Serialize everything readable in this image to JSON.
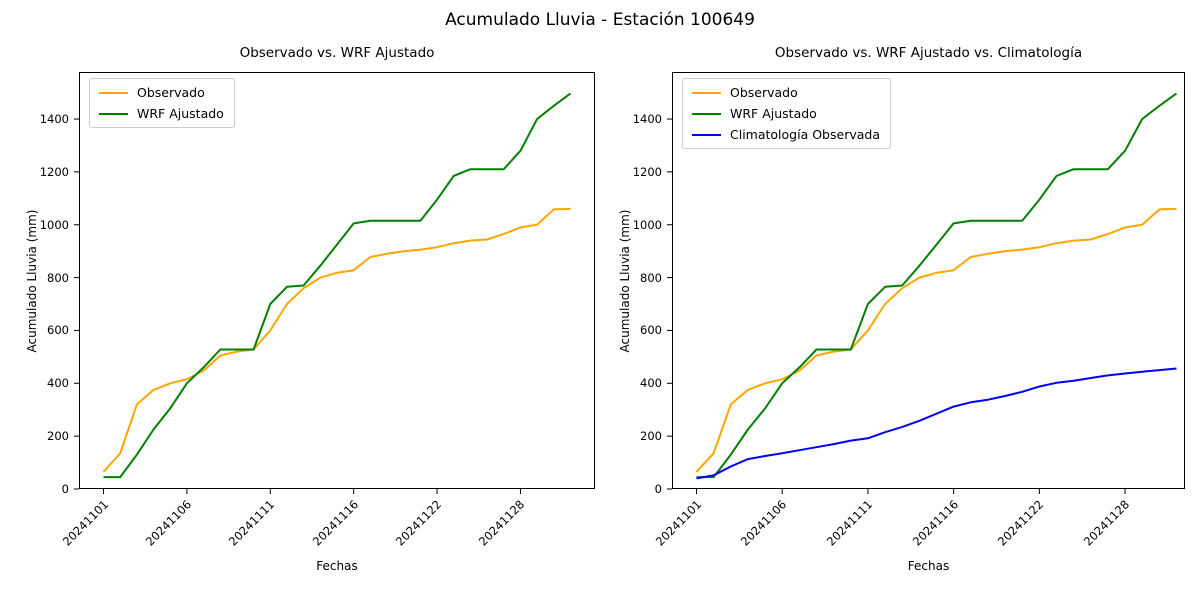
{
  "figure": {
    "title": "Acumulado Lluvia - Estación 100649"
  },
  "charts": [
    {
      "title": "Observado vs. WRF Ajustado",
      "xlabel": "Fechas",
      "ylabel": "Acumulado Lluvia (mm)",
      "series_indices": [
        0,
        1
      ],
      "legend": [
        {
          "label": "Observado",
          "color": "#ffa500"
        },
        {
          "label": "WRF Ajustado",
          "color": "#008000"
        }
      ]
    },
    {
      "title": "Observado vs. WRF Ajustado vs. Climatología",
      "xlabel": "Fechas",
      "ylabel": "Acumulado Lluvia (mm)",
      "series_indices": [
        0,
        1,
        2
      ],
      "legend": [
        {
          "label": "Observado",
          "color": "#ffa500"
        },
        {
          "label": "WRF Ajustado",
          "color": "#008000"
        },
        {
          "label": "Climatología Observada",
          "color": "#0000ff"
        }
      ]
    }
  ],
  "chart_data": {
    "type": "line",
    "title": "Acumulado Lluvia - Estación 100649",
    "xlabel": "Fechas",
    "ylabel": "Acumulado Lluvia (mm)",
    "grid": false,
    "legend_position": "upper left",
    "ylim": [
      0,
      1578
    ],
    "y_tick_values": [
      0,
      200,
      400,
      600,
      800,
      1000,
      1200,
      1400
    ],
    "x_tick_labels": [
      "20241101",
      "20241106",
      "20241111",
      "20241116",
      "20241122",
      "20241128"
    ],
    "x_tick_indices": [
      0,
      5,
      10,
      15,
      20,
      25
    ],
    "x": [
      "20241101",
      "20241102",
      "20241103",
      "20241104",
      "20241105",
      "20241106",
      "20241107",
      "20241108",
      "20241109",
      "20241110",
      "20241111",
      "20241112",
      "20241113",
      "20241114",
      "20241115",
      "20241116",
      "20241118",
      "20241119",
      "20241120",
      "20241121",
      "20241122",
      "20241124",
      "20241125",
      "20241126",
      "20241127",
      "20241128",
      "20241129",
      "20241130",
      "20241201"
    ],
    "series": [
      {
        "name": "Observado",
        "color": "#ffa500",
        "values": [
          65,
          135,
          320,
          375,
          400,
          415,
          448,
          505,
          520,
          528,
          600,
          700,
          760,
          800,
          818,
          828,
          878,
          890,
          900,
          906,
          915,
          930,
          940,
          944,
          965,
          990,
          1000,
          1058,
          1060
        ]
      },
      {
        "name": "WRF Ajustado",
        "color": "#008000",
        "values": [
          45,
          45,
          130,
          225,
          305,
          400,
          460,
          528,
          528,
          528,
          700,
          765,
          770,
          845,
          925,
          1005,
          1015,
          1015,
          1015,
          1015,
          1095,
          1185,
          1210,
          1210,
          1210,
          1280,
          1400,
          1450,
          1497
        ]
      },
      {
        "name": "Climatología Observada",
        "color": "#0000ff",
        "values": [
          40,
          52,
          85,
          113,
          125,
          135,
          147,
          158,
          170,
          183,
          192,
          215,
          235,
          258,
          285,
          312,
          328,
          338,
          352,
          368,
          388,
          402,
          410,
          420,
          430,
          437,
          444,
          450,
          456
        ]
      }
    ]
  }
}
